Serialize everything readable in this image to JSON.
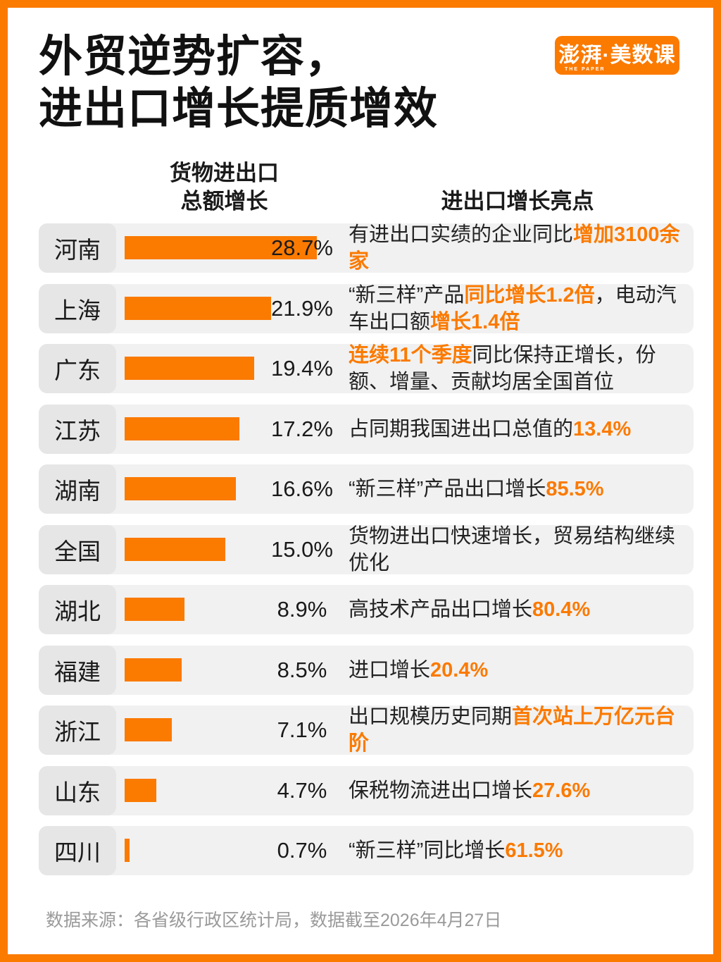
{
  "title": {
    "line1": "外贸逆势扩容，",
    "line2": "进出口增长提质增效"
  },
  "logo": {
    "text": "澎湃·美数课",
    "subtext": "THE PAPER"
  },
  "columns": {
    "bar_header_line1": "货物进出口",
    "bar_header_line2": "总额增长",
    "highlight_header": "进出口增长亮点"
  },
  "chart_data": {
    "type": "bar",
    "orientation": "horizontal",
    "unit": "%",
    "xlim": [
      0,
      30
    ],
    "categories": [
      "河南",
      "上海",
      "广东",
      "江苏",
      "湖南",
      "全国",
      "湖北",
      "福建",
      "浙江",
      "山东",
      "四川"
    ],
    "values": [
      28.7,
      21.9,
      19.4,
      17.2,
      16.6,
      15.0,
      8.9,
      8.5,
      7.1,
      4.7,
      0.7
    ],
    "value_labels": [
      "28.7%",
      "21.9%",
      "19.4%",
      "17.2%",
      "16.6%",
      "15.0%",
      "8.9%",
      "8.5%",
      "7.1%",
      "4.7%",
      "0.7%"
    ],
    "highlights": [
      [
        {
          "t": "有进出口实绩的企业同比",
          "em": false
        },
        {
          "t": "增加3100余家",
          "em": true
        }
      ],
      [
        {
          "t": "“新三样”产品",
          "em": false
        },
        {
          "t": "同比增长1.2倍",
          "em": true
        },
        {
          "t": "，电动汽车出口额",
          "em": false
        },
        {
          "t": "增长1.4倍",
          "em": true
        }
      ],
      [
        {
          "t": "连续11个季度",
          "em": true
        },
        {
          "t": "同比保持正增长，份额、增量、贡献均居全国首位",
          "em": false
        }
      ],
      [
        {
          "t": "占同期我国进出口总值的",
          "em": false
        },
        {
          "t": "13.4%",
          "em": true
        }
      ],
      [
        {
          "t": "“新三样”产品出口增长",
          "em": false
        },
        {
          "t": "85.5%",
          "em": true
        }
      ],
      [
        {
          "t": "货物进出口快速增长，贸易结构继续优化",
          "em": false
        }
      ],
      [
        {
          "t": "高技术产品出口增长",
          "em": false
        },
        {
          "t": "80.4%",
          "em": true
        }
      ],
      [
        {
          "t": "进口增长",
          "em": false
        },
        {
          "t": "20.4%",
          "em": true
        }
      ],
      [
        {
          "t": "出口规模历史同期",
          "em": false
        },
        {
          "t": "首次站上万亿元台阶",
          "em": true
        }
      ],
      [
        {
          "t": "保税物流进出口增长",
          "em": false
        },
        {
          "t": "27.6%",
          "em": true
        }
      ],
      [
        {
          "t": "“新三样”同比增长",
          "em": false
        },
        {
          "t": "61.5%",
          "em": true
        }
      ]
    ]
  },
  "footer": {
    "source": "数据来源：各省级行政区统计局，数据截至2026年4月27日"
  },
  "colors": {
    "accent": "#FB7A00",
    "row_bg": "#F1F1F1",
    "label_bg": "#E6E6E6",
    "text": "#1A1A1A",
    "footer_text": "#9A9A9A"
  }
}
